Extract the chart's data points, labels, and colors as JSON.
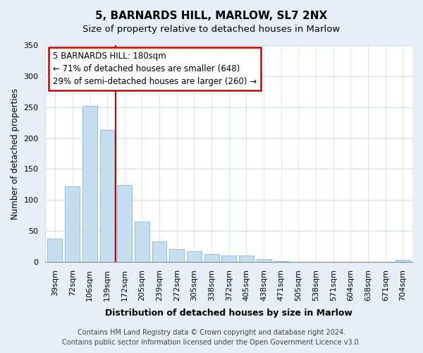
{
  "title": "5, BARNARDS HILL, MARLOW, SL7 2NX",
  "subtitle": "Size of property relative to detached houses in Marlow",
  "xlabel": "Distribution of detached houses by size in Marlow",
  "ylabel": "Number of detached properties",
  "bar_labels": [
    "39sqm",
    "72sqm",
    "106sqm",
    "139sqm",
    "172sqm",
    "205sqm",
    "239sqm",
    "272sqm",
    "305sqm",
    "338sqm",
    "372sqm",
    "405sqm",
    "438sqm",
    "471sqm",
    "505sqm",
    "538sqm",
    "571sqm",
    "604sqm",
    "638sqm",
    "671sqm",
    "704sqm"
  ],
  "bar_values": [
    38,
    122,
    252,
    213,
    124,
    65,
    33,
    20,
    17,
    13,
    10,
    10,
    5,
    1,
    0,
    0,
    0,
    0,
    0,
    0,
    3
  ],
  "bar_color": "#c5dff0",
  "bar_edge_color": "#8ab4d4",
  "vline_x_index": 4,
  "vline_color": "#cc0000",
  "ylim": [
    0,
    350
  ],
  "annotation_text": "5 BARNARDS HILL: 180sqm\n← 71% of detached houses are smaller (648)\n29% of semi-detached houses are larger (260) →",
  "annotation_box_color": "#ffffff",
  "annotation_box_edge": "#cc0000",
  "footer_line1": "Contains HM Land Registry data © Crown copyright and database right 2024.",
  "footer_line2": "Contains public sector information licensed under the Open Government Licence v3.0.",
  "background_color": "#e8eef8",
  "plot_background": "#ffffff",
  "grid_color": "#d0dce8",
  "title_fontsize": 11,
  "subtitle_fontsize": 9.5,
  "ylabel_fontsize": 8.5,
  "xlabel_fontsize": 9,
  "tick_fontsize": 8,
  "footer_fontsize": 7
}
